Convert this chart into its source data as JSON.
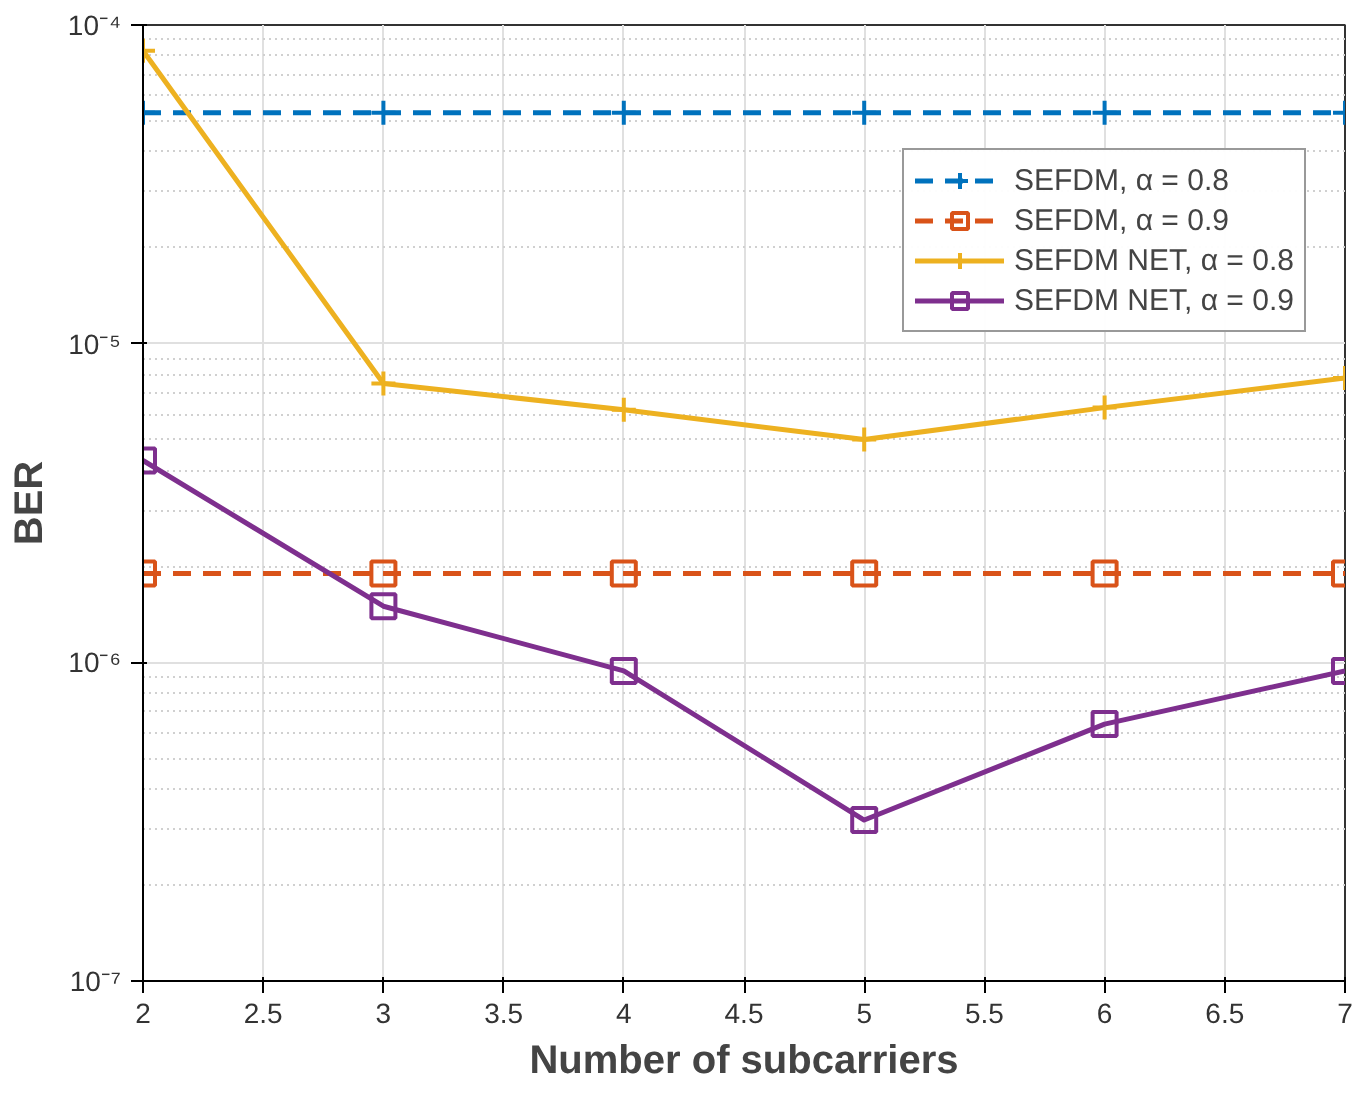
{
  "chart_data": {
    "type": "line",
    "xlabel": "Number of subcarriers",
    "ylabel": "BER",
    "log": "y",
    "grid": true,
    "legend": "top right",
    "x": [
      2,
      3,
      4,
      5,
      6,
      7
    ],
    "xlim": [
      2,
      7
    ],
    "xticks": [
      2,
      2.5,
      3,
      3.5,
      4,
      4.5,
      5,
      5.5,
      6,
      6.5,
      7
    ],
    "ylim": [
      1e-07,
      0.0001
    ],
    "yticks": [
      {
        "value": 1e-07,
        "label": "10⁻⁷"
      },
      {
        "value": 1e-06,
        "label": "10⁻⁶"
      },
      {
        "value": 1e-05,
        "label": "10⁻⁵"
      },
      {
        "value": 0.0001,
        "label": "10⁻⁴"
      }
    ],
    "series": [
      {
        "name": "SEFDM, α = 0.8",
        "color": "#0072bd",
        "marker": "cross",
        "line_style": "dashed",
        "values": [
          5.3e-05,
          5.3e-05,
          5.3e-05,
          5.3e-05,
          5.3e-05,
          5.3e-05
        ]
      },
      {
        "name": "SEFDM, α = 0.9",
        "color": "#d95319",
        "marker": "square",
        "line_style": "dashed",
        "values": [
          1.9e-06,
          1.9e-06,
          1.9e-06,
          1.9e-06,
          1.9e-06,
          1.9e-06
        ]
      },
      {
        "name": "SEFDM NET, α = 0.8",
        "color": "#edb120",
        "marker": "cross",
        "line_style": "solid",
        "values": [
          8.3e-05,
          7.5e-06,
          6.2e-06,
          5e-06,
          6.3e-06,
          7.8e-06
        ]
      },
      {
        "name": "SEFDM NET, α = 0.9",
        "color": "#7e2f8e",
        "marker": "square",
        "line_style": "solid",
        "values": [
          4.3e-06,
          1.5e-06,
          9.4e-07,
          3.2e-07,
          6.4e-07,
          9.4e-07
        ]
      }
    ]
  }
}
